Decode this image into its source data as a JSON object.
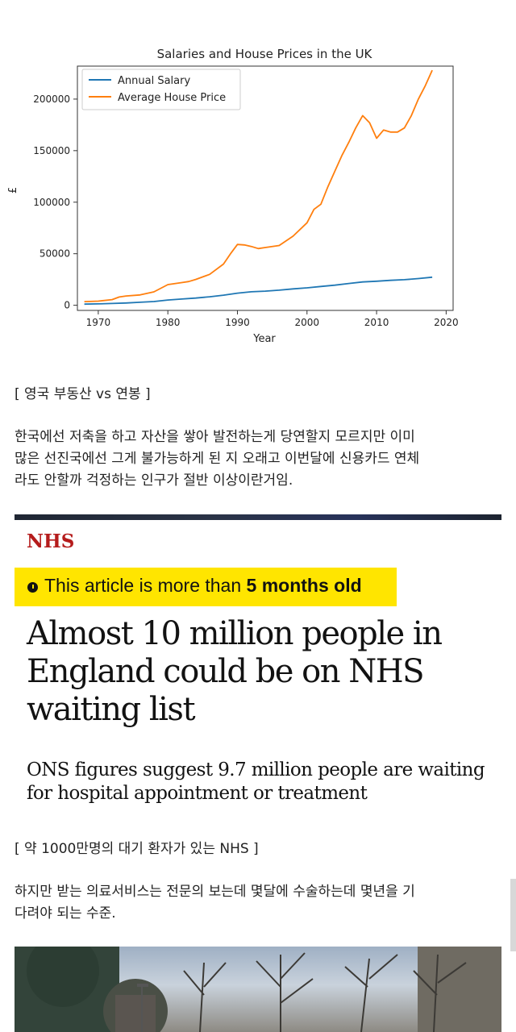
{
  "chart_data": {
    "type": "line",
    "title": "Salaries and House Prices in the UK",
    "xlabel": "Year",
    "ylabel": "£",
    "xlim": [
      1967,
      2021
    ],
    "ylim": [
      -5000,
      232000
    ],
    "xticks": [
      1970,
      1980,
      1990,
      2000,
      2010,
      2020
    ],
    "yticks": [
      0,
      50000,
      100000,
      150000,
      200000
    ],
    "grid": false,
    "legend": "top-left",
    "series": [
      {
        "name": "Annual Salary",
        "color": "#1f77b4",
        "x": [
          1968,
          1970,
          1972,
          1974,
          1976,
          1978,
          1980,
          1982,
          1984,
          1986,
          1988,
          1990,
          1992,
          1994,
          1996,
          1998,
          2000,
          2002,
          2004,
          2006,
          2008,
          2010,
          2012,
          2014,
          2016,
          2018
        ],
        "y": [
          1100,
          1300,
          1700,
          2200,
          2900,
          3600,
          5100,
          6000,
          7000,
          8200,
          9800,
          11700,
          13100,
          13700,
          14600,
          15900,
          16900,
          18200,
          19500,
          21100,
          22600,
          23300,
          24200,
          24800,
          25900,
          27200
        ]
      },
      {
        "name": "Average House Price",
        "color": "#ff7f0e",
        "x": [
          1968,
          1970,
          1972,
          1973,
          1974,
          1976,
          1978,
          1980,
          1982,
          1983,
          1984,
          1986,
          1988,
          1989,
          1990,
          1991,
          1992,
          1993,
          1994,
          1996,
          1998,
          2000,
          2001,
          2002,
          2003,
          2004,
          2005,
          2006,
          2007,
          2008,
          2009,
          2010,
          2011,
          2012,
          2013,
          2014,
          2015,
          2016,
          2017,
          2018
        ],
        "y": [
          3500,
          4000,
          5500,
          8000,
          9000,
          10000,
          13000,
          20000,
          22000,
          23000,
          25000,
          30000,
          40000,
          50000,
          59000,
          58500,
          57000,
          55000,
          56000,
          58000,
          67000,
          80000,
          93000,
          98000,
          115000,
          130000,
          145000,
          158000,
          172000,
          184000,
          177000,
          162000,
          170000,
          168000,
          168000,
          172000,
          184000,
          200000,
          213000,
          228000
        ]
      }
    ]
  },
  "captions": {
    "chart": "[ 영국 부동산 vs  연봉 ]",
    "article": "[ 약 1000만명의 대기 환자가 있는 NHS ]"
  },
  "paragraphs": {
    "p1_line1": "한국에선 저축을 하고 자산을 쌓아 발전하는게 당연할지 모르지만 이미",
    "p1_line2": "많은 선진국에선 그게 불가능하게 된 지 오래고 이번달에 신용카드 연체",
    "p1_line3": "라도 안할까 걱정하는 인구가 절반 이상이란거임.",
    "p2_line1": " 하지만 받는 의료서비스는 전문의 보는데 몇달에 수술하는데 몇년을 기",
    "p2_line2": "다려야 되는 수준."
  },
  "article": {
    "section": "NHS",
    "badge_prefix": "This article is more than ",
    "badge_bold": "5 months old",
    "badge_icon": "clock-icon",
    "headline_line1": "Almost 10 million people in",
    "headline_line2": "England could be on NHS",
    "headline_line3": "waiting list",
    "standfirst_line1": "ONS figures suggest 9.7 million people are waiting",
    "standfirst_line2": "for hospital appointment or treatment"
  }
}
